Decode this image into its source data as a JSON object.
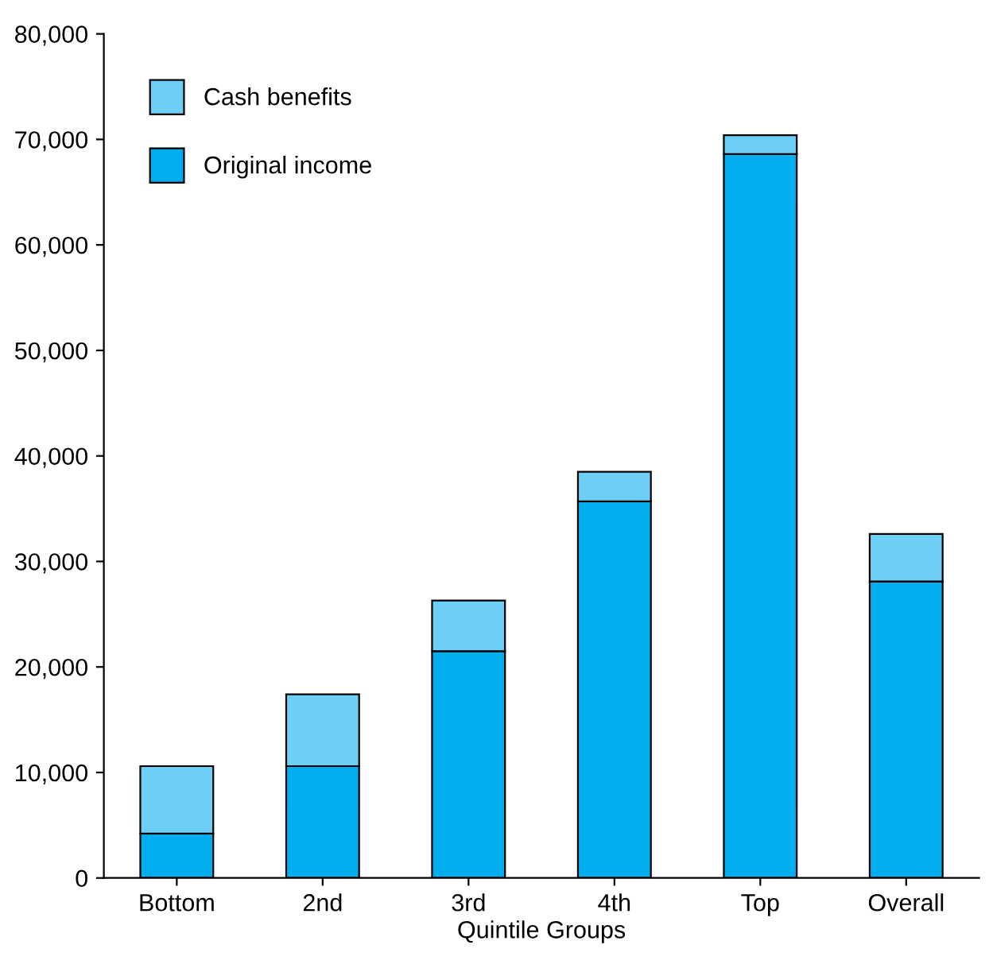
{
  "chart_data": {
    "type": "bar",
    "stacked": true,
    "xlabel": "Quintile Groups",
    "categories": [
      "Bottom",
      "2nd",
      "3rd",
      "4th",
      "Top",
      "Overall"
    ],
    "series": [
      {
        "name": "Original income",
        "color": "#00aeef",
        "values": [
          4200,
          10600,
          21500,
          35700,
          68600,
          28100
        ]
      },
      {
        "name": "Cash benefits",
        "color": "#6dcff6",
        "values": [
          6400,
          6800,
          4800,
          2800,
          1800,
          4500
        ]
      }
    ],
    "ylim": [
      0,
      80000
    ],
    "yticks": [
      0,
      {
        "value": 10000,
        "label": "10,000"
      },
      {
        "value": 20000,
        "label": "20,000"
      },
      {
        "value": 30000,
        "label": "30,000"
      },
      {
        "value": 40000,
        "label": "40,000"
      },
      {
        "value": 50000,
        "label": "50,000"
      },
      {
        "value": 60000,
        "label": "60,000"
      },
      {
        "value": 70000,
        "label": "70,000"
      },
      {
        "value": 80000,
        "label": "80,000"
      }
    ],
    "grid": false,
    "legend": "top left"
  }
}
